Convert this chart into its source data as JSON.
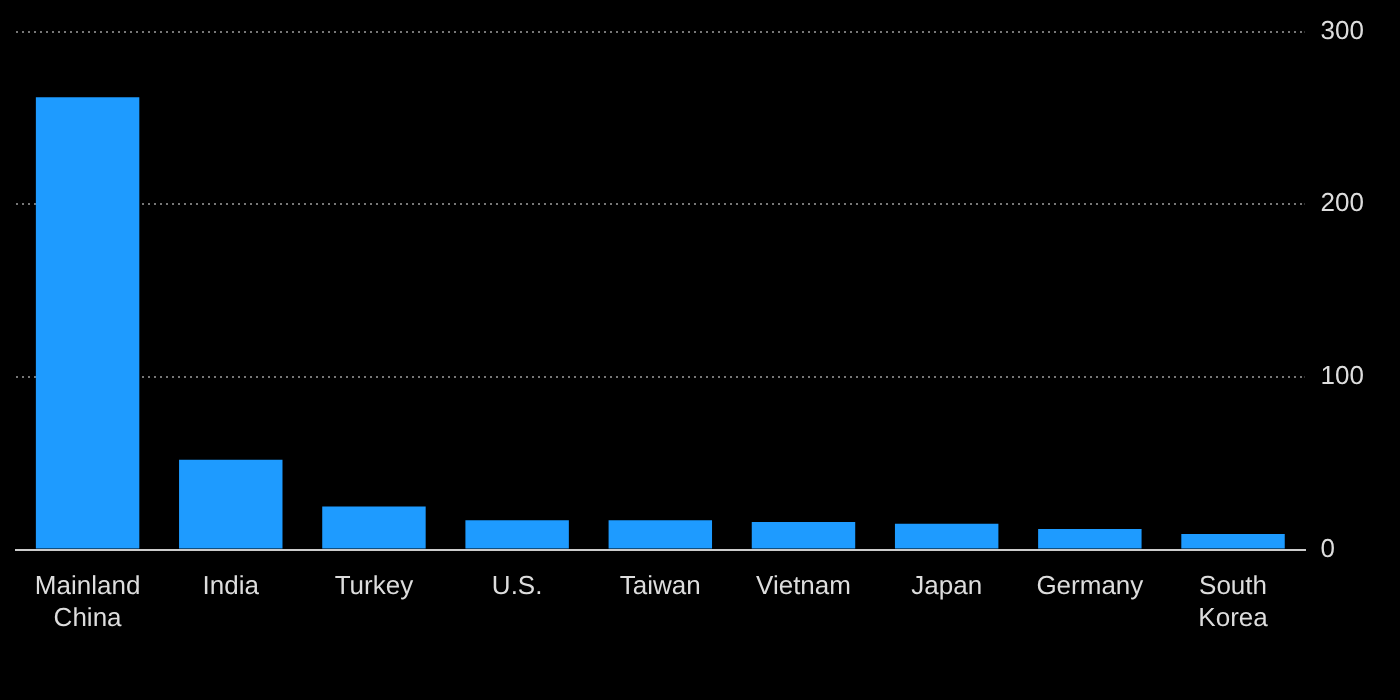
{
  "chart_data": {
    "type": "bar",
    "categories": [
      "Mainland China",
      "India",
      "Turkey",
      "U.S.",
      "Taiwan",
      "Vietnam",
      "Japan",
      "Germany",
      "South Korea"
    ],
    "values": [
      262,
      52,
      25,
      17,
      17,
      16,
      15,
      12,
      9
    ],
    "color": "#1e9bff",
    "ylim": [
      0,
      300
    ],
    "yticks": [
      0,
      100,
      200,
      300
    ],
    "grid": "y"
  }
}
